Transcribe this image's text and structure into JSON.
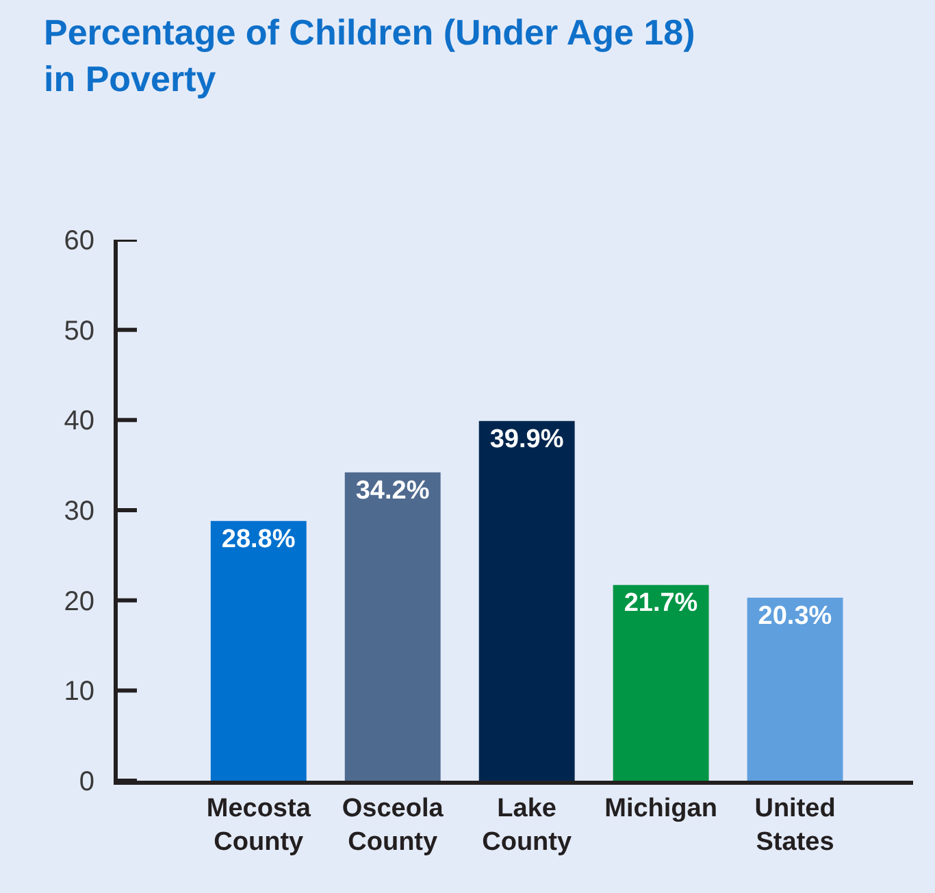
{
  "chart_data": {
    "type": "bar",
    "title": "Percentage of Children (Under Age 18)\nin Poverty",
    "categories": [
      "Mecosta\nCounty",
      "Osceola\nCounty",
      "Lake\nCounty",
      "Michigan",
      "United\nStates"
    ],
    "values": [
      28.8,
      34.2,
      39.9,
      21.7,
      20.3
    ],
    "colors": [
      "#0071ce",
      "#4f6a8f",
      "#00264f",
      "#009645",
      "#5f9fde"
    ],
    "value_labels": [
      "28.8%",
      "34.2%",
      "39.9%",
      "21.7%",
      "20.3%"
    ],
    "ylim": [
      0,
      60
    ],
    "yticks": [
      0,
      10,
      20,
      30,
      40,
      50,
      60
    ]
  }
}
